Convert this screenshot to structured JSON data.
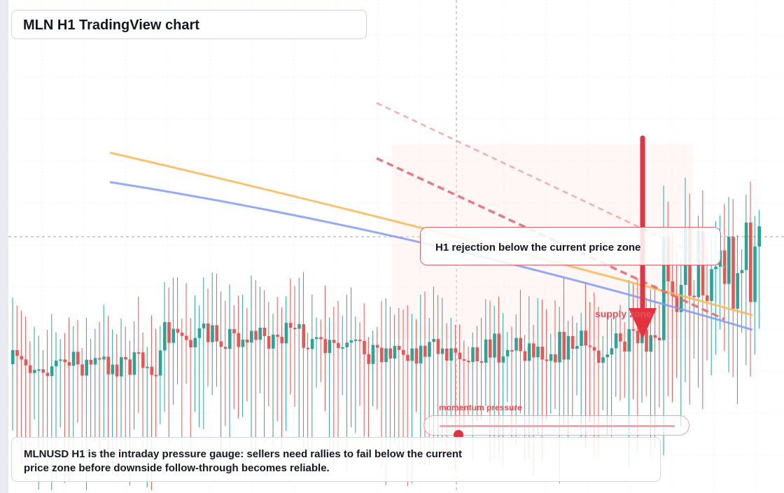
{
  "header": {
    "title": "MLN H1 TradingView chart"
  },
  "callout": {
    "text": "H1 rejection below the current price zone"
  },
  "zone": {
    "label": "supply zone"
  },
  "gauge": {
    "label": "momentum pressure",
    "level": 0.08
  },
  "footer": {
    "text": "MLNUSD H1 is the intraday pressure gauge: sellers need rallies to fail below the current price zone before downside follow-through becomes reliable."
  },
  "colors": {
    "up": "#26a69a",
    "down": "#ef5350",
    "ma_fast": "#f7b955",
    "ma_slow": "#7f9cf0",
    "accent": "#e5323f"
  },
  "icons": {
    "arrow": "down-arrow-icon"
  }
}
